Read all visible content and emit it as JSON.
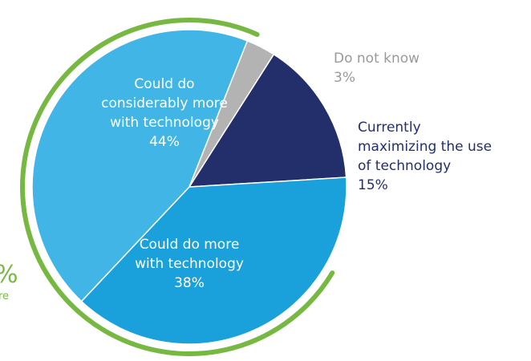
{
  "chart_data": {
    "type": "pie",
    "title": "",
    "slices": [
      {
        "name": "Currently maximizing the use of technology",
        "value": 15,
        "color": "#232f6b",
        "label_lines": [
          "Currently",
          "maximizing the use",
          "of technology",
          "15%"
        ],
        "label_position": "outside-right"
      },
      {
        "name": "Could do more with technology",
        "value": 38,
        "color": "#1aa0da",
        "label_lines": [
          "Could do more",
          "with technology",
          "38%"
        ],
        "label_position": "inside"
      },
      {
        "name": "Could do considerably more with technology",
        "value": 44,
        "color": "#41b6e6",
        "label_lines": [
          "Could do",
          "considerably more",
          "with technology",
          "44%"
        ],
        "label_position": "inside"
      },
      {
        "name": "Do not know",
        "value": 3,
        "color": "#b3b3b3",
        "label_lines": [
          "Do not know",
          "3%"
        ],
        "label_position": "outside-top-right"
      }
    ],
    "outer_arc": {
      "color": "#77b843",
      "grouped_slices": [
        "Could do more with technology",
        "Could do considerably more with technology"
      ],
      "label_partial_lines": [
        "%",
        "re"
      ]
    },
    "legend": "none"
  }
}
